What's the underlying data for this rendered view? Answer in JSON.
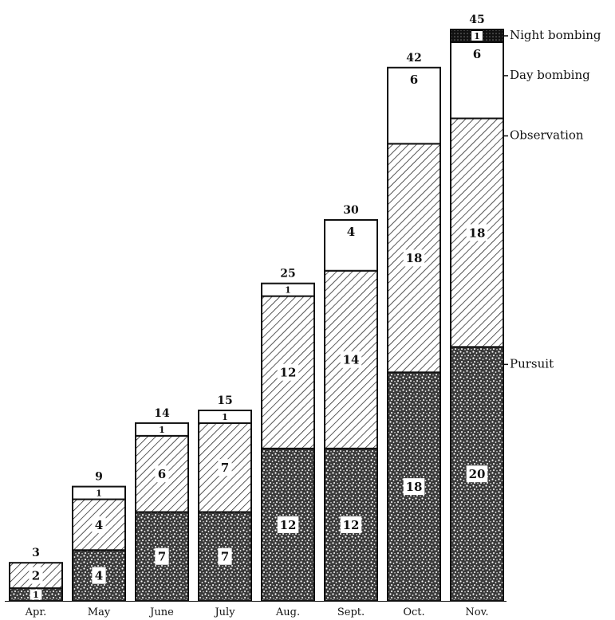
{
  "chart_data": {
    "type": "bar",
    "stacked": true,
    "categories": [
      "Apr.",
      "May",
      "June",
      "July",
      "Aug.",
      "Sept.",
      "Oct.",
      "Nov."
    ],
    "series": [
      {
        "name": "Pursuit",
        "values": [
          1,
          4,
          7,
          7,
          12,
          12,
          18,
          20
        ],
        "pattern": "stipple"
      },
      {
        "name": "Observation",
        "values": [
          2,
          4,
          6,
          7,
          12,
          14,
          18,
          18
        ],
        "pattern": "hatch"
      },
      {
        "name": "Day bombing",
        "values": [
          0,
          1,
          1,
          1,
          1,
          4,
          6,
          6
        ],
        "pattern": "white"
      },
      {
        "name": "Night bombing",
        "values": [
          0,
          0,
          0,
          0,
          0,
          0,
          0,
          1
        ],
        "pattern": "dark"
      }
    ],
    "totals": [
      3,
      9,
      14,
      15,
      25,
      30,
      42,
      45
    ],
    "ylim": [
      0,
      45
    ],
    "title": "",
    "xlabel": "",
    "ylabel": "",
    "grid": false,
    "legend": "right"
  }
}
